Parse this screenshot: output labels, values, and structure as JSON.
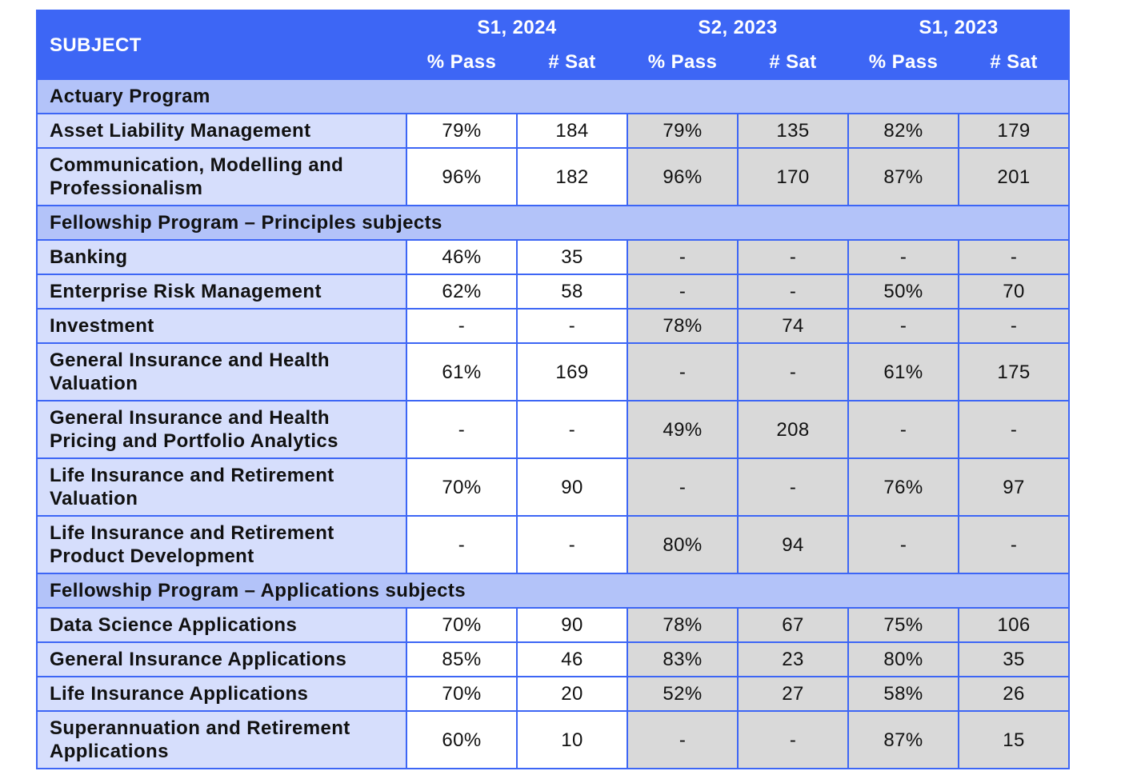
{
  "header": {
    "subject": "SUBJECT",
    "periods": [
      "S1, 2024",
      "S2, 2023",
      "S1, 2023"
    ],
    "columns": [
      "% Pass",
      "# Sat",
      "% Pass",
      "# Sat",
      "% Pass",
      "# Sat"
    ]
  },
  "sections": [
    {
      "title": "Actuary Program",
      "rows": [
        {
          "subject": "Asset Liability Management",
          "values": [
            "79%",
            "184",
            "79%",
            "135",
            "82%",
            "179"
          ]
        },
        {
          "subject": "Communication, Modelling and Professionalism",
          "values": [
            "96%",
            "182",
            "96%",
            "170",
            "87%",
            "201"
          ]
        }
      ]
    },
    {
      "title": "Fellowship Program – Principles subjects",
      "rows": [
        {
          "subject": "Banking",
          "values": [
            "46%",
            "35",
            "-",
            "-",
            "-",
            "-"
          ]
        },
        {
          "subject": "Enterprise Risk Management",
          "values": [
            "62%",
            "58",
            "-",
            "-",
            "50%",
            "70"
          ]
        },
        {
          "subject": "Investment",
          "values": [
            "-",
            "-",
            "78%",
            "74",
            "-",
            "-"
          ]
        },
        {
          "subject": "General Insurance and Health Valuation",
          "values": [
            "61%",
            "169",
            "-",
            "-",
            "61%",
            "175"
          ]
        },
        {
          "subject": "General Insurance and Health Pricing and Portfolio Analytics",
          "values": [
            "-",
            "-",
            "49%",
            "208",
            "-",
            "-"
          ]
        },
        {
          "subject": "Life Insurance and Retirement Valuation",
          "values": [
            "70%",
            "90",
            "-",
            "-",
            "76%",
            "97"
          ]
        },
        {
          "subject": "Life Insurance and Retirement Product Development",
          "values": [
            "-",
            "-",
            "80%",
            "94",
            "-",
            "-"
          ]
        }
      ]
    },
    {
      "title": "Fellowship Program – Applications subjects",
      "rows": [
        {
          "subject": "Data Science Applications",
          "values": [
            "70%",
            "90",
            "78%",
            "67",
            "75%",
            "106"
          ]
        },
        {
          "subject": "General Insurance Applications",
          "values": [
            "85%",
            "46",
            "83%",
            "23",
            "80%",
            "35"
          ]
        },
        {
          "subject": "Life Insurance Applications",
          "values": [
            "70%",
            "20",
            "52%",
            "27",
            "58%",
            "26"
          ]
        },
        {
          "subject": "Superannuation and Retirement Applications",
          "values": [
            "60%",
            "10",
            "-",
            "-",
            "87%",
            "15"
          ]
        }
      ]
    }
  ]
}
